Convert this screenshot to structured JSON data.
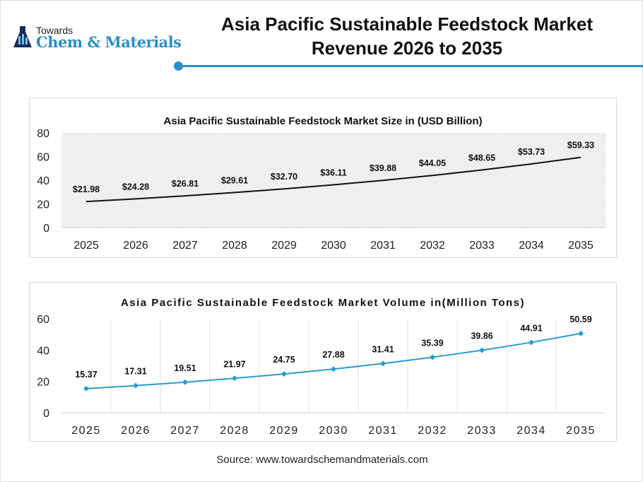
{
  "brand": {
    "top": "Towards",
    "main": "Chem & Materials"
  },
  "header": {
    "title_line1": "Asia Pacific Sustainable Feedstock Market",
    "title_line2": "Revenue 2026 to 2035"
  },
  "colors": {
    "accent": "#2b8fc7",
    "line1": "#111111",
    "line2": "#2b9bd0"
  },
  "chart_data": [
    {
      "type": "line",
      "title": "Asia Pacific Sustainable Feedstock Market  Size in (USD Billion)",
      "categories": [
        "2025",
        "2026",
        "2027",
        "2028",
        "2029",
        "2030",
        "2031",
        "2032",
        "2033",
        "2034",
        "2035"
      ],
      "values": [
        21.98,
        24.28,
        26.81,
        29.61,
        32.7,
        36.11,
        39.88,
        44.05,
        48.65,
        53.73,
        59.33
      ],
      "labels": [
        "$21.98",
        "$24.28",
        "$26.81",
        "$29.61",
        "$32.70",
        "$36.11",
        "$39.88",
        "$44.05",
        "$48.65",
        "$53.73",
        "$59.33"
      ],
      "yticks": [
        "0",
        "20",
        "40",
        "60",
        "80"
      ],
      "ylim": [
        0,
        80
      ],
      "background": "hatched"
    },
    {
      "type": "line",
      "title": "Asia Pacific Sustainable Feedstock Market Volume in(Million Tons)",
      "categories": [
        "2025",
        "2026",
        "2027",
        "2028",
        "2029",
        "2030",
        "2031",
        "2032",
        "2033",
        "2034",
        "2035"
      ],
      "values": [
        15.37,
        17.31,
        19.51,
        21.97,
        24.75,
        27.88,
        31.41,
        35.39,
        39.86,
        44.91,
        50.59
      ],
      "labels": [
        "15.37",
        "17.31",
        "19.51",
        "21.97",
        "24.75",
        "27.88",
        "31.41",
        "35.39",
        "39.86",
        "44.91",
        "50.59"
      ],
      "yticks": [
        "0",
        "20",
        "40",
        "60"
      ],
      "ylim": [
        0,
        60
      ],
      "markers": "diamond",
      "grid": "vertical"
    }
  ],
  "source": "Source: www.towardschemandmaterials.com"
}
